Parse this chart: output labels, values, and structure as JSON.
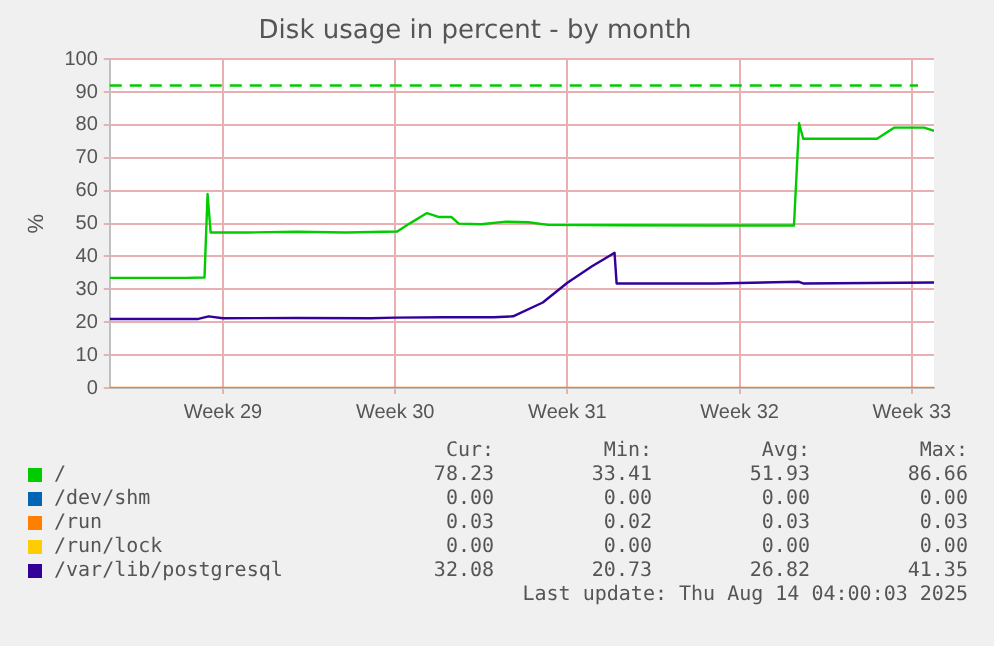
{
  "chart_data": {
    "type": "line",
    "title": "Disk usage in percent - by month",
    "ylabel": "%",
    "xlim": [
      "2025-07-12T09:36",
      "2025-08-14T21:36"
    ],
    "xticks": [
      {
        "value": "2025-07-17T00:00",
        "label": "Week 29"
      },
      {
        "value": "2025-07-24T00:00",
        "label": "Week 30"
      },
      {
        "value": "2025-07-31T00:00",
        "label": "Week 31"
      },
      {
        "value": "2025-08-07T00:00",
        "label": "Week 32"
      },
      {
        "value": "2025-08-14T00:00",
        "label": "Week 33"
      }
    ],
    "ylim": [
      0,
      100
    ],
    "yticks": [
      0,
      10,
      20,
      30,
      40,
      50,
      60,
      70,
      80,
      90,
      100
    ],
    "grid": true,
    "legend": "bottom",
    "marker": "none",
    "line_style": "solid",
    "ref_lines": [
      {
        "axis": "y",
        "value": 92,
        "color": "#00cc00",
        "line_style": "dashed"
      }
    ],
    "series": [
      {
        "name": "/",
        "color": "#00cc00",
        "x": [
          "2025-07-12T09:36",
          "2025-07-14T00:00",
          "2025-07-15T12:00",
          "2025-07-16T06:00",
          "2025-07-16T09:00",
          "2025-07-16T12:00",
          "2025-07-18T00:00",
          "2025-07-20T00:00",
          "2025-07-22T00:00",
          "2025-07-24T02:00",
          "2025-07-24T14:00",
          "2025-07-25T07:00",
          "2025-07-25T19:00",
          "2025-07-26T07:00",
          "2025-07-26T14:00",
          "2025-07-27T12:00",
          "2025-07-28T12:00",
          "2025-07-29T10:00",
          "2025-07-30T05:00",
          "2025-08-02T00:00",
          "2025-08-06T00:00",
          "2025-08-09T05:00",
          "2025-08-09T10:00",
          "2025-08-09T14:00",
          "2025-08-11T00:00",
          "2025-08-12T14:00",
          "2025-08-13T07:00",
          "2025-08-14T12:00",
          "2025-08-14T21:36"
        ],
        "values": [
          33.5,
          33.5,
          33.5,
          33.6,
          59,
          47.3,
          47.3,
          47.5,
          47.3,
          47.6,
          50,
          53.2,
          52,
          52,
          50,
          49.8,
          50.6,
          50.4,
          49.6,
          49.5,
          49.4,
          49.4,
          80.5,
          75.8,
          75.8,
          75.8,
          79.2,
          79.2,
          78.2
        ]
      },
      {
        "name": "/dev/shm",
        "color": "#0066b3"
      },
      {
        "name": "/run",
        "color": "#ff8000",
        "x": [
          "2025-07-12T09:36",
          "2025-08-14T21:36"
        ],
        "values": [
          0.03,
          0.03
        ]
      },
      {
        "name": "/run/lock",
        "color": "#ffcc00"
      },
      {
        "name": "/var/lib/postgresql",
        "color": "#330099",
        "x": [
          "2025-07-12T09:36",
          "2025-07-16T00:00",
          "2025-07-16T10:00",
          "2025-07-17T00:00",
          "2025-07-20T00:00",
          "2025-07-23T00:00",
          "2025-07-24T00:00",
          "2025-07-26T00:00",
          "2025-07-28T00:00",
          "2025-07-28T19:00",
          "2025-07-30T00:00",
          "2025-07-31T00:00",
          "2025-08-01T00:00",
          "2025-08-01T22:00",
          "2025-08-02T00:00",
          "2025-08-06T00:00",
          "2025-08-09T10:00",
          "2025-08-09T14:00",
          "2025-08-14T21:36"
        ],
        "values": [
          21,
          21,
          21.8,
          21.2,
          21.3,
          21.2,
          21.4,
          21.5,
          21.5,
          21.8,
          26,
          32,
          37,
          41.1,
          31.8,
          31.8,
          32.3,
          31.8,
          32.1
        ]
      }
    ],
    "annotations": [
      "Cur:",
      "Min:",
      "Avg:",
      "Max:",
      "78.23",
      "33.41",
      "51.93",
      "86.66",
      "0.00",
      "0.00",
      "0.00",
      "0.00",
      "0.03",
      "0.02",
      "0.03",
      "0.03",
      "0.00",
      "0.00",
      "0.00",
      "0.00",
      "32.08",
      "20.73",
      "26.82",
      "41.35",
      "Last update: Thu Aug 14 04:00:03 2025"
    ]
  }
}
